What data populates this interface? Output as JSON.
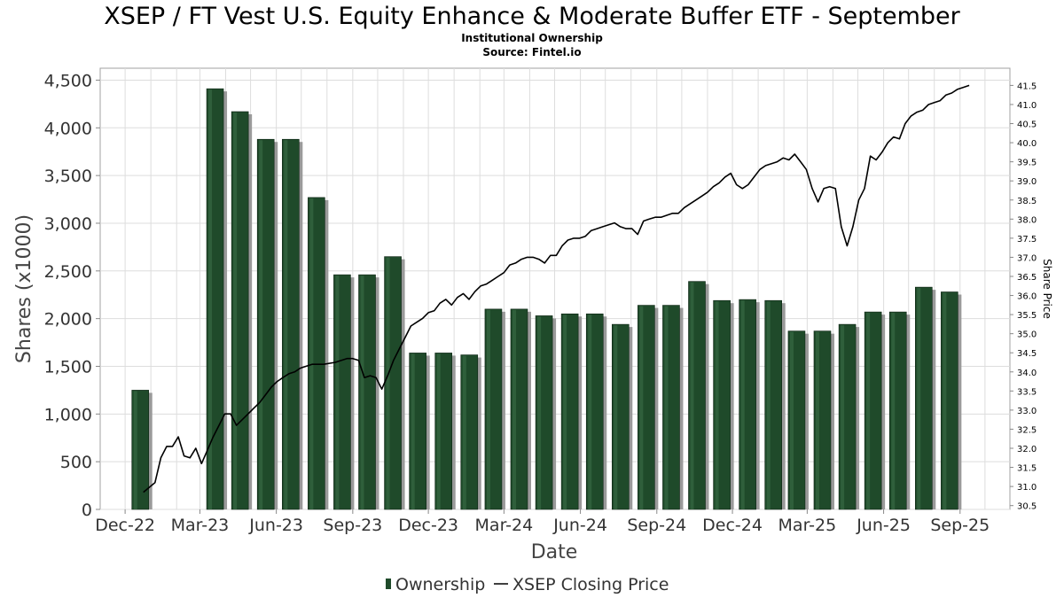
{
  "chart_data": {
    "type": "bar",
    "title": "XSEP / FT Vest U.S. Equity Enhance & Moderate Buffer ETF - September",
    "subtitle": "Institutional Ownership",
    "source": "Source: Fintel.io",
    "xlabel": "Date",
    "ylabel": "Shares (x1000)",
    "y2label": "Share Price",
    "ylim": [
      0,
      4625
    ],
    "y2lim": [
      30.4,
      41.95
    ],
    "xlim": [
      "2022-11-01",
      "2025-10-31"
    ],
    "grid": true,
    "legend_position": "bottom-center",
    "x_ticks": [
      {
        "date": "2022-12-01",
        "label": "Dec-22"
      },
      {
        "date": "2023-03-01",
        "label": "Mar-23"
      },
      {
        "date": "2023-06-01",
        "label": "Jun-23"
      },
      {
        "date": "2023-09-01",
        "label": "Sep-23"
      },
      {
        "date": "2023-12-01",
        "label": "Dec-23"
      },
      {
        "date": "2024-03-01",
        "label": "Mar-24"
      },
      {
        "date": "2024-06-01",
        "label": "Jun-24"
      },
      {
        "date": "2024-09-01",
        "label": "Sep-24"
      },
      {
        "date": "2024-12-01",
        "label": "Dec-24"
      },
      {
        "date": "2025-03-01",
        "label": "Mar-25"
      },
      {
        "date": "2025-06-01",
        "label": "Jun-25"
      },
      {
        "date": "2025-09-01",
        "label": "Sep-25"
      }
    ],
    "y_ticks": [
      {
        "value": 0,
        "label": "0"
      },
      {
        "value": 500,
        "label": "500"
      },
      {
        "value": 1000,
        "label": "1,000"
      },
      {
        "value": 1500,
        "label": "1,500"
      },
      {
        "value": 2000,
        "label": "2,000"
      },
      {
        "value": 2500,
        "label": "2,500"
      },
      {
        "value": 3000,
        "label": "3,000"
      },
      {
        "value": 3500,
        "label": "3,500"
      },
      {
        "value": 4000,
        "label": "4,000"
      },
      {
        "value": 4500,
        "label": "4,500"
      }
    ],
    "y2_ticks": [
      "30.5",
      "31.0",
      "31.5",
      "32.0",
      "32.5",
      "33.0",
      "33.5",
      "34.0",
      "34.5",
      "35.0",
      "35.5",
      "36.0",
      "36.5",
      "37.0",
      "37.5",
      "38.0",
      "38.5",
      "39.0",
      "39.5",
      "40.0",
      "40.5",
      "41.0",
      "41.5"
    ],
    "series": [
      {
        "name": "Ownership",
        "type": "bar",
        "color": "#1f4a2a",
        "points": [
          {
            "date": "2022-12-31",
            "value": 1250
          },
          {
            "date": "2023-03-31",
            "value": 4410
          },
          {
            "date": "2023-04-30",
            "value": 4170
          },
          {
            "date": "2023-05-31",
            "value": 3880
          },
          {
            "date": "2023-06-30",
            "value": 3880
          },
          {
            "date": "2023-07-31",
            "value": 3270
          },
          {
            "date": "2023-08-31",
            "value": 2460
          },
          {
            "date": "2023-09-30",
            "value": 2460
          },
          {
            "date": "2023-10-31",
            "value": 2650
          },
          {
            "date": "2023-11-30",
            "value": 1640
          },
          {
            "date": "2023-12-31",
            "value": 1640
          },
          {
            "date": "2024-01-31",
            "value": 1620
          },
          {
            "date": "2024-02-29",
            "value": 2100
          },
          {
            "date": "2024-03-31",
            "value": 2100
          },
          {
            "date": "2024-04-30",
            "value": 2030
          },
          {
            "date": "2024-05-31",
            "value": 2050
          },
          {
            "date": "2024-06-30",
            "value": 2050
          },
          {
            "date": "2024-07-31",
            "value": 1940
          },
          {
            "date": "2024-08-31",
            "value": 2140
          },
          {
            "date": "2024-09-30",
            "value": 2140
          },
          {
            "date": "2024-10-31",
            "value": 2390
          },
          {
            "date": "2024-11-30",
            "value": 2190
          },
          {
            "date": "2024-12-31",
            "value": 2200
          },
          {
            "date": "2025-01-31",
            "value": 2190
          },
          {
            "date": "2025-02-28",
            "value": 1870
          },
          {
            "date": "2025-03-31",
            "value": 1870
          },
          {
            "date": "2025-04-30",
            "value": 1940
          },
          {
            "date": "2025-05-31",
            "value": 2070
          },
          {
            "date": "2025-06-30",
            "value": 2070
          },
          {
            "date": "2025-07-31",
            "value": 2330
          },
          {
            "date": "2025-08-31",
            "value": 2280
          }
        ]
      },
      {
        "name": "XSEP Closing Price",
        "type": "line",
        "color": "#000000",
        "points": [
          {
            "date": "2022-12-23",
            "value": 30.85
          },
          {
            "date": "2023-01-06",
            "value": 31.1
          },
          {
            "date": "2023-01-13",
            "value": 31.75
          },
          {
            "date": "2023-01-20",
            "value": 32.05
          },
          {
            "date": "2023-01-27",
            "value": 32.05
          },
          {
            "date": "2023-02-03",
            "value": 32.3
          },
          {
            "date": "2023-02-10",
            "value": 31.8
          },
          {
            "date": "2023-02-17",
            "value": 31.75
          },
          {
            "date": "2023-02-24",
            "value": 32.0
          },
          {
            "date": "2023-03-03",
            "value": 31.6
          },
          {
            "date": "2023-03-10",
            "value": 31.95
          },
          {
            "date": "2023-03-17",
            "value": 32.3
          },
          {
            "date": "2023-03-24",
            "value": 32.6
          },
          {
            "date": "2023-03-31",
            "value": 32.9
          },
          {
            "date": "2023-04-07",
            "value": 32.9
          },
          {
            "date": "2023-04-14",
            "value": 32.6
          },
          {
            "date": "2023-04-21",
            "value": 32.75
          },
          {
            "date": "2023-04-28",
            "value": 32.9
          },
          {
            "date": "2023-05-05",
            "value": 33.05
          },
          {
            "date": "2023-05-12",
            "value": 33.2
          },
          {
            "date": "2023-05-19",
            "value": 33.4
          },
          {
            "date": "2023-05-26",
            "value": 33.6
          },
          {
            "date": "2023-06-02",
            "value": 33.75
          },
          {
            "date": "2023-06-09",
            "value": 33.85
          },
          {
            "date": "2023-06-16",
            "value": 33.95
          },
          {
            "date": "2023-06-23",
            "value": 34.0
          },
          {
            "date": "2023-06-30",
            "value": 34.1
          },
          {
            "date": "2023-07-14",
            "value": 34.2
          },
          {
            "date": "2023-07-28",
            "value": 34.2
          },
          {
            "date": "2023-08-11",
            "value": 34.25
          },
          {
            "date": "2023-08-25",
            "value": 34.35
          },
          {
            "date": "2023-09-01",
            "value": 34.35
          },
          {
            "date": "2023-09-08",
            "value": 34.3
          },
          {
            "date": "2023-09-15",
            "value": 33.85
          },
          {
            "date": "2023-09-22",
            "value": 33.9
          },
          {
            "date": "2023-09-29",
            "value": 33.85
          },
          {
            "date": "2023-10-06",
            "value": 33.55
          },
          {
            "date": "2023-10-13",
            "value": 33.9
          },
          {
            "date": "2023-10-20",
            "value": 34.3
          },
          {
            "date": "2023-10-27",
            "value": 34.6
          },
          {
            "date": "2023-11-03",
            "value": 34.9
          },
          {
            "date": "2023-11-10",
            "value": 35.2
          },
          {
            "date": "2023-11-17",
            "value": 35.3
          },
          {
            "date": "2023-11-24",
            "value": 35.4
          },
          {
            "date": "2023-12-01",
            "value": 35.55
          },
          {
            "date": "2023-12-08",
            "value": 35.6
          },
          {
            "date": "2023-12-15",
            "value": 35.8
          },
          {
            "date": "2023-12-22",
            "value": 35.9
          },
          {
            "date": "2023-12-29",
            "value": 35.75
          },
          {
            "date": "2024-01-05",
            "value": 35.95
          },
          {
            "date": "2024-01-12",
            "value": 36.05
          },
          {
            "date": "2024-01-19",
            "value": 35.9
          },
          {
            "date": "2024-01-26",
            "value": 36.1
          },
          {
            "date": "2024-02-02",
            "value": 36.25
          },
          {
            "date": "2024-02-09",
            "value": 36.3
          },
          {
            "date": "2024-02-16",
            "value": 36.4
          },
          {
            "date": "2024-02-23",
            "value": 36.5
          },
          {
            "date": "2024-03-01",
            "value": 36.6
          },
          {
            "date": "2024-03-08",
            "value": 36.8
          },
          {
            "date": "2024-03-15",
            "value": 36.85
          },
          {
            "date": "2024-03-22",
            "value": 36.95
          },
          {
            "date": "2024-03-29",
            "value": 37.0
          },
          {
            "date": "2024-04-05",
            "value": 37.0
          },
          {
            "date": "2024-04-12",
            "value": 36.95
          },
          {
            "date": "2024-04-19",
            "value": 36.85
          },
          {
            "date": "2024-04-26",
            "value": 37.05
          },
          {
            "date": "2024-05-03",
            "value": 37.05
          },
          {
            "date": "2024-05-10",
            "value": 37.3
          },
          {
            "date": "2024-05-17",
            "value": 37.45
          },
          {
            "date": "2024-05-24",
            "value": 37.5
          },
          {
            "date": "2024-05-31",
            "value": 37.5
          },
          {
            "date": "2024-06-07",
            "value": 37.55
          },
          {
            "date": "2024-06-14",
            "value": 37.7
          },
          {
            "date": "2024-06-21",
            "value": 37.75
          },
          {
            "date": "2024-06-28",
            "value": 37.8
          },
          {
            "date": "2024-07-05",
            "value": 37.85
          },
          {
            "date": "2024-07-12",
            "value": 37.9
          },
          {
            "date": "2024-07-19",
            "value": 37.8
          },
          {
            "date": "2024-07-26",
            "value": 37.75
          },
          {
            "date": "2024-08-02",
            "value": 37.75
          },
          {
            "date": "2024-08-09",
            "value": 37.6
          },
          {
            "date": "2024-08-16",
            "value": 37.95
          },
          {
            "date": "2024-08-23",
            "value": 38.0
          },
          {
            "date": "2024-08-30",
            "value": 38.05
          },
          {
            "date": "2024-09-06",
            "value": 38.05
          },
          {
            "date": "2024-09-13",
            "value": 38.1
          },
          {
            "date": "2024-09-20",
            "value": 38.15
          },
          {
            "date": "2024-09-27",
            "value": 38.15
          },
          {
            "date": "2024-10-04",
            "value": 38.3
          },
          {
            "date": "2024-10-11",
            "value": 38.4
          },
          {
            "date": "2024-10-18",
            "value": 38.5
          },
          {
            "date": "2024-10-25",
            "value": 38.6
          },
          {
            "date": "2024-11-01",
            "value": 38.7
          },
          {
            "date": "2024-11-08",
            "value": 38.85
          },
          {
            "date": "2024-11-15",
            "value": 38.95
          },
          {
            "date": "2024-11-22",
            "value": 39.1
          },
          {
            "date": "2024-11-29",
            "value": 39.2
          },
          {
            "date": "2024-12-06",
            "value": 38.9
          },
          {
            "date": "2024-12-13",
            "value": 38.8
          },
          {
            "date": "2024-12-20",
            "value": 38.9
          },
          {
            "date": "2024-12-27",
            "value": 39.1
          },
          {
            "date": "2025-01-03",
            "value": 39.3
          },
          {
            "date": "2025-01-10",
            "value": 39.4
          },
          {
            "date": "2025-01-17",
            "value": 39.45
          },
          {
            "date": "2025-01-24",
            "value": 39.5
          },
          {
            "date": "2025-01-31",
            "value": 39.6
          },
          {
            "date": "2025-02-07",
            "value": 39.55
          },
          {
            "date": "2025-02-14",
            "value": 39.7
          },
          {
            "date": "2025-02-21",
            "value": 39.5
          },
          {
            "date": "2025-02-28",
            "value": 39.3
          },
          {
            "date": "2025-03-07",
            "value": 38.8
          },
          {
            "date": "2025-03-14",
            "value": 38.45
          },
          {
            "date": "2025-03-21",
            "value": 38.8
          },
          {
            "date": "2025-03-28",
            "value": 38.85
          },
          {
            "date": "2025-04-04",
            "value": 38.8
          },
          {
            "date": "2025-04-11",
            "value": 37.8
          },
          {
            "date": "2025-04-18",
            "value": 37.3
          },
          {
            "date": "2025-04-25",
            "value": 37.8
          },
          {
            "date": "2025-05-02",
            "value": 38.5
          },
          {
            "date": "2025-05-09",
            "value": 38.8
          },
          {
            "date": "2025-05-16",
            "value": 39.65
          },
          {
            "date": "2025-05-23",
            "value": 39.55
          },
          {
            "date": "2025-05-30",
            "value": 39.75
          },
          {
            "date": "2025-06-06",
            "value": 40.0
          },
          {
            "date": "2025-06-13",
            "value": 40.15
          },
          {
            "date": "2025-06-20",
            "value": 40.1
          },
          {
            "date": "2025-06-27",
            "value": 40.5
          },
          {
            "date": "2025-07-04",
            "value": 40.7
          },
          {
            "date": "2025-07-11",
            "value": 40.8
          },
          {
            "date": "2025-07-18",
            "value": 40.85
          },
          {
            "date": "2025-07-25",
            "value": 41.0
          },
          {
            "date": "2025-08-01",
            "value": 41.05
          },
          {
            "date": "2025-08-08",
            "value": 41.1
          },
          {
            "date": "2025-08-15",
            "value": 41.25
          },
          {
            "date": "2025-08-22",
            "value": 41.3
          },
          {
            "date": "2025-08-29",
            "value": 41.4
          },
          {
            "date": "2025-09-05",
            "value": 41.45
          },
          {
            "date": "2025-09-12",
            "value": 41.5
          }
        ]
      }
    ]
  }
}
